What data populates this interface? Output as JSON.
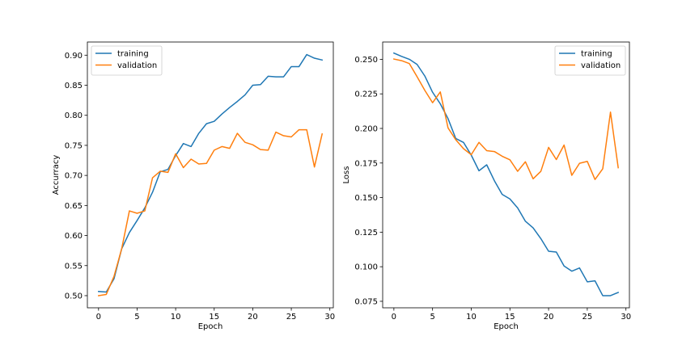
{
  "chart_data": [
    {
      "type": "line",
      "xlabel": "Epoch",
      "ylabel": "Accurracy",
      "xlim": [
        -1.45,
        30.45
      ],
      "ylim": [
        0.4798,
        0.9219
      ],
      "xticks": [
        0,
        5,
        10,
        15,
        20,
        25,
        30
      ],
      "xtick_labels": [
        "0",
        "5",
        "10",
        "15",
        "20",
        "25",
        "30"
      ],
      "yticks": [
        0.5,
        0.55,
        0.6,
        0.65,
        0.7,
        0.75,
        0.8,
        0.85,
        0.9
      ],
      "ytick_labels": [
        "0.50",
        "0.55",
        "0.60",
        "0.65",
        "0.70",
        "0.75",
        "0.80",
        "0.85",
        "0.90"
      ],
      "legend_position": "upper-left",
      "grid": false,
      "x": [
        0,
        1,
        2,
        3,
        4,
        5,
        6,
        7,
        8,
        9,
        10,
        11,
        12,
        13,
        14,
        15,
        16,
        17,
        18,
        19,
        20,
        21,
        22,
        23,
        24,
        25,
        26,
        27,
        28,
        29
      ],
      "series": [
        {
          "name": "training",
          "color": "#1f77b4",
          "values": [
            0.507,
            0.506,
            0.528,
            0.578,
            0.605,
            0.625,
            0.646,
            0.672,
            0.706,
            0.71,
            0.733,
            0.753,
            0.748,
            0.77,
            0.786,
            0.79,
            0.802,
            0.813,
            0.823,
            0.834,
            0.85,
            0.851,
            0.865,
            0.864,
            0.864,
            0.881,
            0.881,
            0.901,
            0.895,
            0.892
          ]
        },
        {
          "name": "validation",
          "color": "#ff7f0e",
          "values": [
            0.5,
            0.502,
            0.532,
            0.578,
            0.641,
            0.637,
            0.641,
            0.696,
            0.707,
            0.705,
            0.736,
            0.713,
            0.727,
            0.719,
            0.72,
            0.742,
            0.748,
            0.745,
            0.77,
            0.755,
            0.751,
            0.743,
            0.742,
            0.772,
            0.766,
            0.764,
            0.776,
            0.776,
            0.714,
            0.769
          ]
        }
      ]
    },
    {
      "type": "line",
      "xlabel": "Epoch",
      "ylabel": "Loss",
      "xlim": [
        -1.45,
        30.45
      ],
      "ylim": [
        0.0703,
        0.2625
      ],
      "xticks": [
        0,
        5,
        10,
        15,
        20,
        25,
        30
      ],
      "xtick_labels": [
        "0",
        "5",
        "10",
        "15",
        "20",
        "25",
        "30"
      ],
      "yticks": [
        0.075,
        0.1,
        0.125,
        0.15,
        0.175,
        0.2,
        0.225,
        0.25
      ],
      "ytick_labels": [
        "0.075",
        "0.100",
        "0.125",
        "0.150",
        "0.175",
        "0.200",
        "0.225",
        "0.250"
      ],
      "legend_position": "upper-right",
      "grid": false,
      "x": [
        0,
        1,
        2,
        3,
        4,
        5,
        6,
        7,
        8,
        9,
        10,
        11,
        12,
        13,
        14,
        15,
        16,
        17,
        18,
        19,
        20,
        21,
        22,
        23,
        24,
        25,
        26,
        27,
        28,
        29
      ],
      "series": [
        {
          "name": "training",
          "color": "#1f77b4",
          "values": [
            0.2545,
            0.2521,
            0.25,
            0.2463,
            0.2379,
            0.2262,
            0.2178,
            0.2071,
            0.1927,
            0.1899,
            0.1807,
            0.1694,
            0.1737,
            0.1621,
            0.1523,
            0.149,
            0.1425,
            0.1329,
            0.1281,
            0.1203,
            0.1112,
            0.1106,
            0.1005,
            0.0968,
            0.0991,
            0.0891,
            0.0898,
            0.0791,
            0.0791,
            0.0814
          ]
        },
        {
          "name": "validation",
          "color": "#ff7f0e",
          "values": [
            0.2502,
            0.249,
            0.2469,
            0.2374,
            0.2275,
            0.2186,
            0.2264,
            0.2004,
            0.1918,
            0.1854,
            0.181,
            0.1899,
            0.1839,
            0.1833,
            0.1799,
            0.1773,
            0.169,
            0.1759,
            0.1636,
            0.169,
            0.1863,
            0.1775,
            0.188,
            0.1661,
            0.1748,
            0.1762,
            0.1631,
            0.1708,
            0.2118,
            0.1716
          ]
        }
      ]
    }
  ]
}
